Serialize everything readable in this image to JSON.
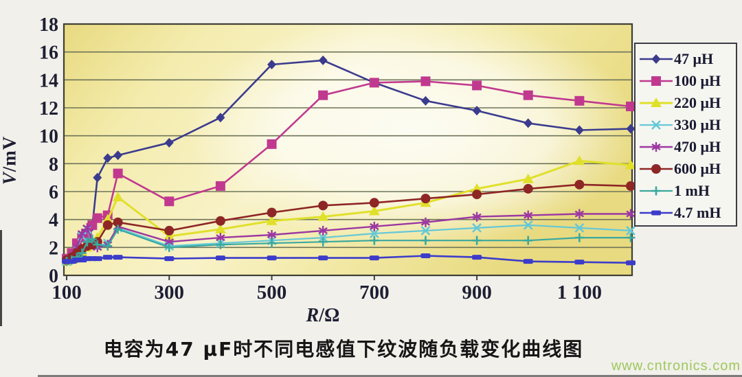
{
  "figure": {
    "caption": "电容为47 μF时不同电感值下纹波随负载变化曲线图",
    "watermark": "www.cntronics.com"
  },
  "colors": {
    "page_bg": "#f1f0eb",
    "plot_bg_edge": "#e8da80",
    "plot_bg_mid": "#f4ecae",
    "plot_bg_highlight": "#fdfcf3",
    "grid": "#6e7458",
    "frame": "#3f3f35",
    "axis_text": "#1f1f33",
    "caption_text": "#161616",
    "watermark": "#96c44e",
    "legend_bg": "#f6f6f1",
    "legend_border": "#3c3c46"
  },
  "chart_data": {
    "type": "line",
    "title": "",
    "xlabel_var": "R",
    "xlabel_unit": "/Ω",
    "ylabel_var": "V",
    "ylabel_unit": "/mV",
    "xlim": [
      100,
      1200
    ],
    "ylim": [
      0,
      18
    ],
    "grid": "horizontal gridlines every 2 mV",
    "legend_position": "right",
    "x": [
      100,
      110,
      120,
      130,
      140,
      150,
      160,
      180,
      200,
      300,
      400,
      500,
      600,
      700,
      800,
      900,
      1000,
      1100,
      1200
    ],
    "x_ticks": [
      {
        "value": 100,
        "label": "100"
      },
      {
        "value": 300,
        "label": "300"
      },
      {
        "value": 500,
        "label": "500"
      },
      {
        "value": 700,
        "label": "700"
      },
      {
        "value": 900,
        "label": "900"
      },
      {
        "value": 1100,
        "label": "1 100"
      }
    ],
    "y_ticks": [
      {
        "value": 0,
        "label": "0"
      },
      {
        "value": 2,
        "label": "2"
      },
      {
        "value": 4,
        "label": "4"
      },
      {
        "value": 6,
        "label": "6"
      },
      {
        "value": 8,
        "label": "8"
      },
      {
        "value": 10,
        "label": "10"
      },
      {
        "value": 12,
        "label": "12"
      },
      {
        "value": 14,
        "label": "14"
      },
      {
        "value": 16,
        "label": "16"
      },
      {
        "value": 18,
        "label": "18"
      }
    ],
    "series": [
      {
        "name": "47 μH",
        "color": "#3b3b8e",
        "marker": "diamond",
        "values": [
          1.0,
          1.1,
          1.2,
          1.4,
          2.1,
          3.5,
          7.0,
          8.4,
          8.6,
          9.5,
          11.3,
          15.1,
          15.4,
          13.8,
          12.5,
          11.8,
          10.9,
          10.4,
          10.5
        ]
      },
      {
        "name": "100 μH",
        "color": "#c0398f",
        "marker": "square",
        "values": [
          1.2,
          1.6,
          2.3,
          2.7,
          3.0,
          3.6,
          4.1,
          4.3,
          7.3,
          5.3,
          6.4,
          9.4,
          12.9,
          13.8,
          13.9,
          13.6,
          12.9,
          12.5,
          12.1
        ]
      },
      {
        "name": "220 μH",
        "color": "#e0e02a",
        "marker": "triangle",
        "values": [
          1.0,
          1.2,
          1.4,
          1.7,
          2.0,
          2.3,
          2.7,
          4.0,
          5.6,
          2.8,
          3.3,
          3.9,
          4.2,
          4.6,
          5.2,
          6.2,
          6.9,
          8.2,
          7.9
        ]
      },
      {
        "name": "330 μH",
        "color": "#64c8d8",
        "marker": "x",
        "values": [
          1.0,
          1.3,
          1.9,
          2.8,
          3.3,
          2.2,
          2.1,
          2.3,
          3.4,
          2.1,
          2.3,
          2.5,
          2.7,
          3.0,
          3.2,
          3.4,
          3.6,
          3.4,
          3.2
        ]
      },
      {
        "name": "470 μH",
        "color": "#9c38a2",
        "marker": "asterisk",
        "values": [
          1.1,
          1.4,
          2.0,
          3.0,
          3.4,
          2.4,
          2.0,
          2.2,
          3.5,
          2.4,
          2.7,
          2.9,
          3.2,
          3.5,
          3.8,
          4.2,
          4.3,
          4.4,
          4.4
        ]
      },
      {
        "name": "600 μH",
        "color": "#8e2626",
        "marker": "circle",
        "values": [
          1.1,
          1.3,
          1.6,
          1.9,
          2.1,
          2.2,
          2.4,
          3.6,
          3.8,
          3.2,
          3.9,
          4.5,
          5.0,
          5.2,
          5.5,
          5.8,
          6.2,
          6.5,
          6.4
        ]
      },
      {
        "name": "1 mH",
        "color": "#3ba89e",
        "marker": "plus",
        "values": [
          1.0,
          1.1,
          1.3,
          1.6,
          2.4,
          2.6,
          2.2,
          2.1,
          3.3,
          2.0,
          2.2,
          2.3,
          2.4,
          2.5,
          2.5,
          2.5,
          2.5,
          2.7,
          2.7
        ]
      },
      {
        "name": "4.7 mH",
        "color": "#3c3cca",
        "marker": "dash",
        "values": [
          1.0,
          1.0,
          1.1,
          1.1,
          1.2,
          1.2,
          1.2,
          1.3,
          1.3,
          1.2,
          1.25,
          1.25,
          1.25,
          1.25,
          1.4,
          1.3,
          1.0,
          0.95,
          0.9
        ]
      }
    ]
  }
}
